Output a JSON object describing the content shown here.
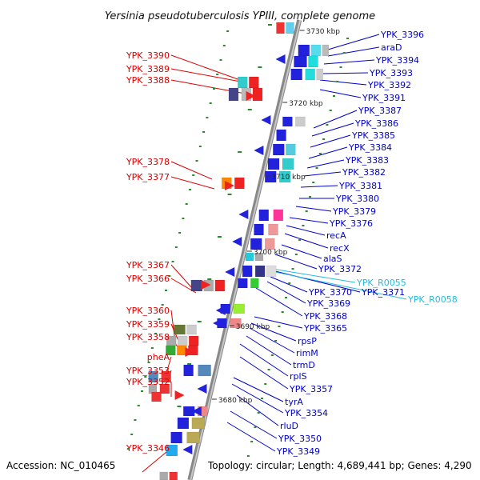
{
  "title": "Yersinia pseudotuberculosis YPIII, complete genome",
  "accession": "Accession: NC_010465",
  "topology": "Topology: circular; Length: 4,689,441 bp; Genes: 4,290",
  "ruler": [
    "3730 kbp",
    "3720 kbp",
    "3710 kbp",
    "3700 kbp",
    "3690 kbp",
    "3680 kbp"
  ],
  "colors": {
    "forward_label": "#dd0000",
    "reverse_label": "#0000cc",
    "rna_label": "#22bbdd",
    "axis": "#aaaaaa"
  },
  "labels_left": [
    "YPK_3390",
    "YPK_3389",
    "YPK_3388",
    "YPK_3378",
    "YPK_3377",
    "YPK_3367",
    "YPK_3366",
    "YPK_3360",
    "YPK_3359",
    "YPK_3358",
    "pheA",
    "YPK_3353",
    "YPK_3352",
    "YPK_3346"
  ],
  "labels_right": [
    "YPK_3396",
    "araD",
    "YPK_3394",
    "YPK_3393",
    "YPK_3392",
    "YPK_3391",
    "YPK_3387",
    "YPK_3386",
    "YPK_3385",
    "YPK_3384",
    "YPK_3383",
    "YPK_3382",
    "YPK_3381",
    "YPK_3380",
    "YPK_3379",
    "YPK_3376",
    "recA",
    "recX",
    "alaS",
    "YPK_3372",
    "YPK_R0055",
    "YPK_3370",
    "YPK_3371",
    "YPK_R0058",
    "YPK_3369",
    "YPK_3368",
    "YPK_3365",
    "rpsP",
    "rimM",
    "trmD",
    "rplS",
    "YPK_3357",
    "tyrA",
    "YPK_3354",
    "rluD",
    "YPK_3350",
    "YPK_3349"
  ]
}
